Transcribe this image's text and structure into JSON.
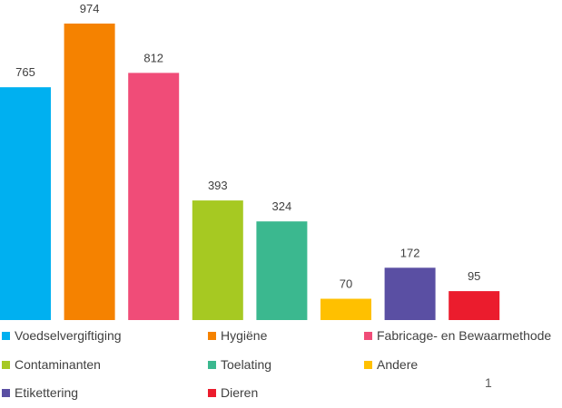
{
  "chart_data": {
    "type": "bar",
    "categories": [
      "Voedselvergiftiging",
      "Hygiëne",
      "Fabricage- en Bewaarmethode",
      "Contaminanten",
      "Toelating",
      "Andere",
      "Etikettering",
      "Dieren"
    ],
    "values": [
      765,
      974,
      812,
      393,
      324,
      70,
      172,
      95
    ],
    "colors": [
      "#00B0F0",
      "#F58200",
      "#F04C78",
      "#A6C922",
      "#3BB88F",
      "#FFC000",
      "#5A4FA3",
      "#EB1C2D"
    ],
    "title": "",
    "xlabel": "",
    "ylabel": "",
    "ylim": [
      0,
      974
    ],
    "grid": false,
    "show_data_labels": true,
    "legend_position": "bottom"
  },
  "page_number": "1"
}
